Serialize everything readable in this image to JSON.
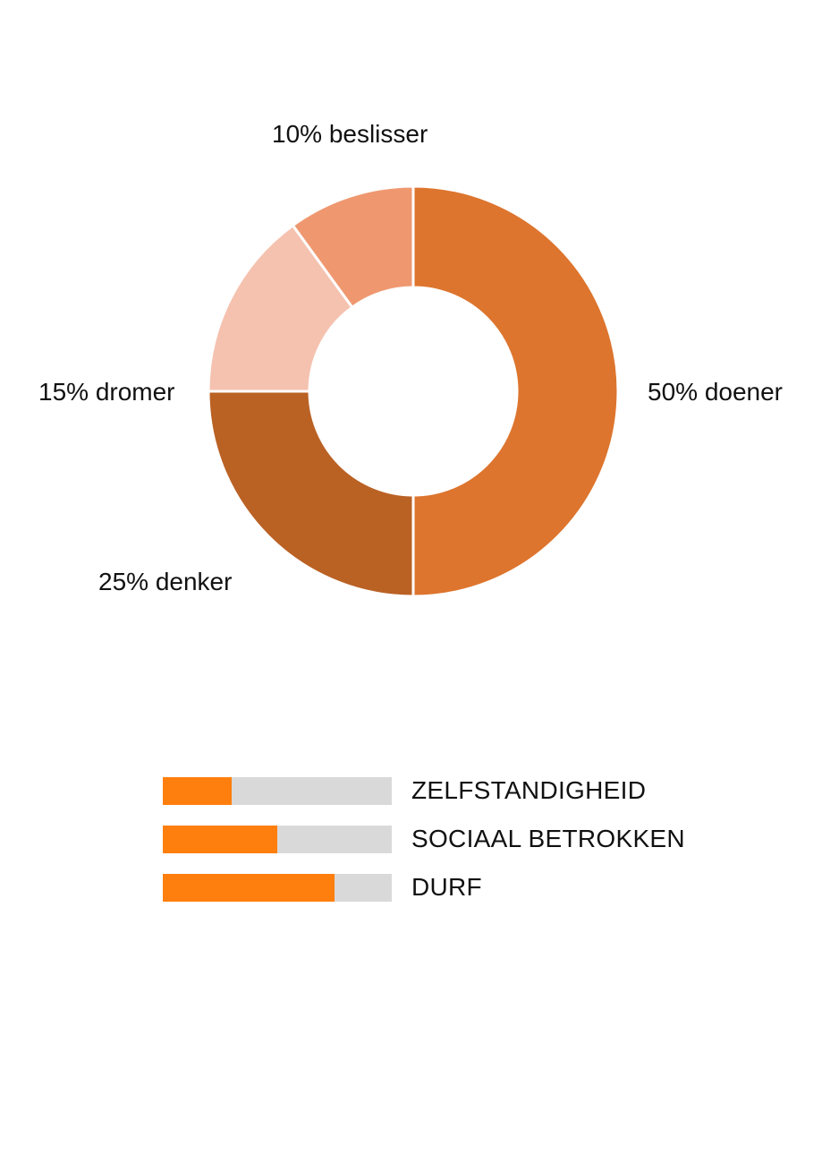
{
  "chart_data": [
    {
      "type": "pie",
      "title": "",
      "labels": [
        "doener",
        "denker",
        "dromer",
        "beslisser"
      ],
      "values": [
        50,
        25,
        15,
        10
      ],
      "unit": "%",
      "label_text": [
        "50% doener",
        "25% denker",
        "15% dromer",
        "10% beslisser"
      ],
      "colors": [
        "#dd752e",
        "#ba6124",
        "#f5c2b0",
        "#ef9870"
      ]
    },
    {
      "type": "bar",
      "title": "",
      "categories": [
        "ZELFSTANDIGHEID",
        "SOCIAAL BETROKKEN",
        "DURF"
      ],
      "values": [
        30,
        50,
        75
      ],
      "ylim": [
        0,
        100
      ],
      "colors": {
        "fill": "#ff7f0e",
        "track": "#d9d9d9"
      }
    }
  ]
}
